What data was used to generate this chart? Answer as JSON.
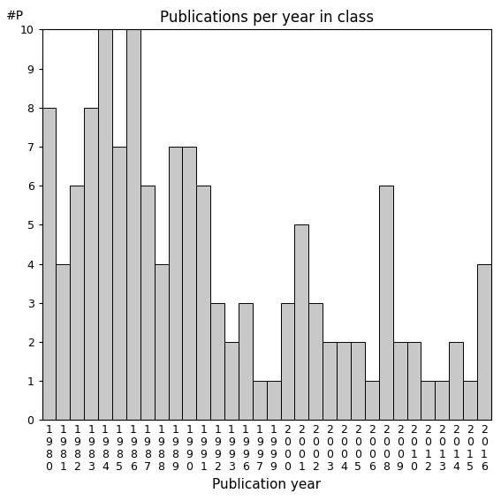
{
  "title": "Publications per year in class",
  "xlabel": "Publication year",
  "ylabel": "#P",
  "years": [
    "1980",
    "1981",
    "1982",
    "1983",
    "1984",
    "1985",
    "1986",
    "1987",
    "1988",
    "1989",
    "1990",
    "1991",
    "1992",
    "1993",
    "1996",
    "1997",
    "1999",
    "2000",
    "2001",
    "2002",
    "2003",
    "2004",
    "2005",
    "2006",
    "2008",
    "2009",
    "2010",
    "2012",
    "2013",
    "2014",
    "2015",
    "2016"
  ],
  "values": [
    8,
    4,
    6,
    8,
    10,
    7,
    10,
    6,
    4,
    7,
    7,
    6,
    3,
    2,
    3,
    1,
    1,
    3,
    5,
    3,
    2,
    2,
    2,
    1,
    6,
    2,
    2,
    1,
    1,
    2,
    1,
    4
  ],
  "bar_color": "#c8c8c8",
  "bar_edgecolor": "#000000",
  "ylim": [
    0,
    10
  ],
  "yticks": [
    0,
    1,
    2,
    3,
    4,
    5,
    6,
    7,
    8,
    9,
    10
  ],
  "title_fontsize": 12,
  "xlabel_fontsize": 11,
  "ylabel_fontsize": 10,
  "tick_fontsize": 9,
  "figsize": [
    5.67,
    5.67
  ],
  "dpi": 100
}
